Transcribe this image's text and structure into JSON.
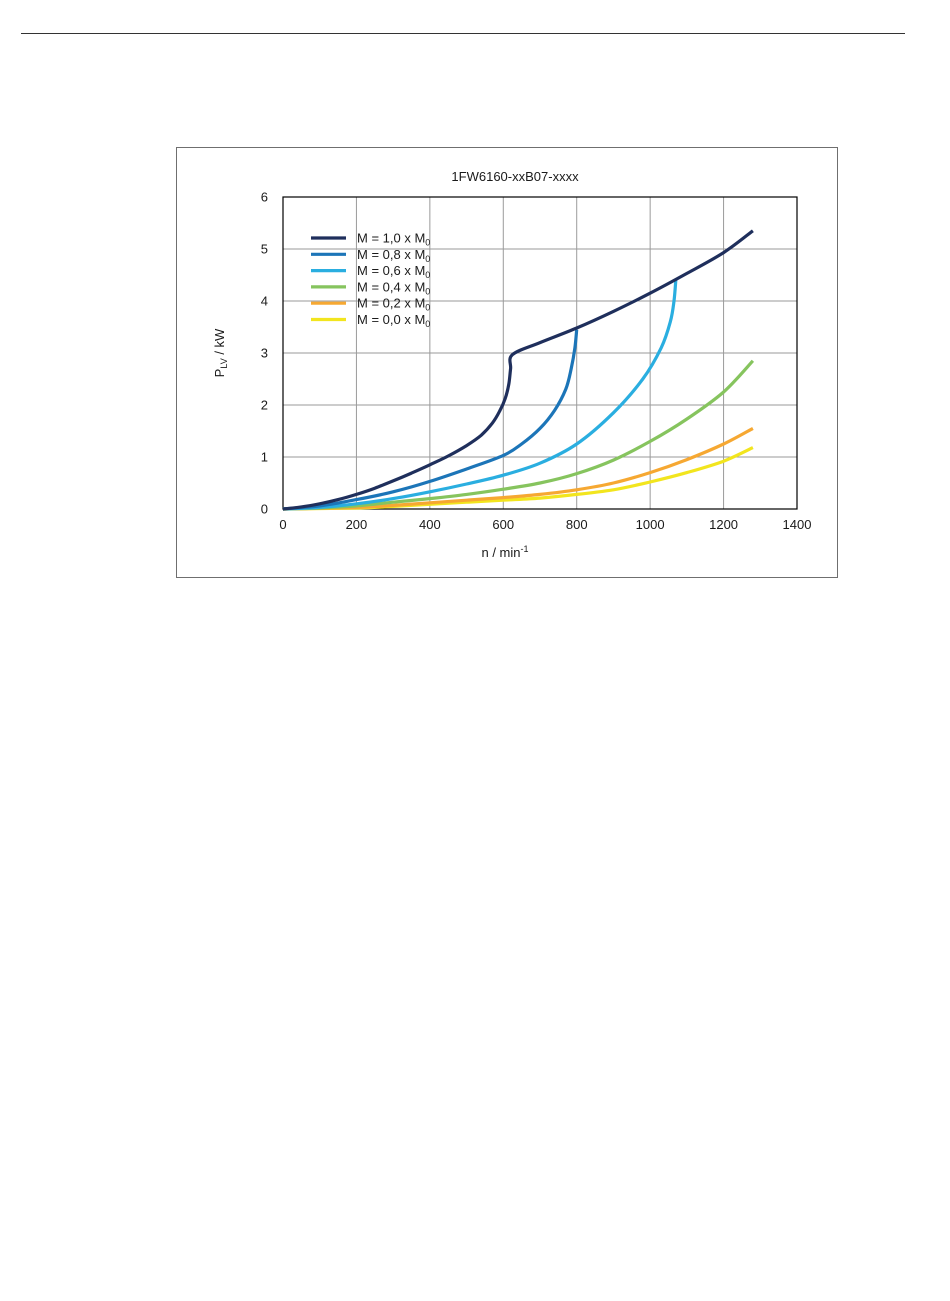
{
  "chart_data": {
    "type": "line",
    "title": "1FW6160-xxB07-xxxx",
    "xlabel": "n / min",
    "xlabel_sup": "-1",
    "ylabel": "P",
    "ylabel_sub": "LV",
    "ylabel_unit": " / kW",
    "xlim": [
      0,
      1400
    ],
    "ylim": [
      0,
      6
    ],
    "xticks": [
      0,
      200,
      400,
      600,
      800,
      1000,
      1200,
      1400
    ],
    "yticks": [
      0,
      1,
      2,
      3,
      4,
      5,
      6
    ],
    "grid": true,
    "legend_position": "top-left",
    "series": [
      {
        "name": "M = 1,0 x M",
        "name_sub": "0",
        "color": "#1f2f5c",
        "points": [
          [
            0,
            0
          ],
          [
            50,
            0.04
          ],
          [
            100,
            0.1
          ],
          [
            150,
            0.18
          ],
          [
            200,
            0.28
          ],
          [
            250,
            0.4
          ],
          [
            300,
            0.54
          ],
          [
            350,
            0.69
          ],
          [
            400,
            0.85
          ],
          [
            450,
            1.02
          ],
          [
            500,
            1.22
          ],
          [
            540,
            1.42
          ],
          [
            570,
            1.65
          ],
          [
            590,
            1.88
          ],
          [
            605,
            2.12
          ],
          [
            615,
            2.4
          ],
          [
            620,
            2.7
          ],
          [
            625,
            2.97
          ],
          [
            700,
            3.2
          ],
          [
            800,
            3.48
          ],
          [
            900,
            3.8
          ],
          [
            1000,
            4.15
          ],
          [
            1100,
            4.53
          ],
          [
            1200,
            4.93
          ],
          [
            1280,
            5.35
          ]
        ]
      },
      {
        "name": "M = 0,8 x M",
        "name_sub": "0",
        "color": "#1c75b8",
        "points": [
          [
            0,
            0
          ],
          [
            100,
            0.06
          ],
          [
            200,
            0.18
          ],
          [
            300,
            0.33
          ],
          [
            400,
            0.53
          ],
          [
            500,
            0.77
          ],
          [
            600,
            1.03
          ],
          [
            650,
            1.25
          ],
          [
            700,
            1.55
          ],
          [
            740,
            1.9
          ],
          [
            770,
            2.3
          ],
          [
            785,
            2.7
          ],
          [
            795,
            3.1
          ],
          [
            800,
            3.45
          ]
        ]
      },
      {
        "name": "M = 0,6 x M",
        "name_sub": "0",
        "color": "#2aaee0",
        "points": [
          [
            0,
            0
          ],
          [
            100,
            0.03
          ],
          [
            200,
            0.1
          ],
          [
            300,
            0.2
          ],
          [
            400,
            0.33
          ],
          [
            500,
            0.48
          ],
          [
            600,
            0.65
          ],
          [
            700,
            0.88
          ],
          [
            800,
            1.25
          ],
          [
            900,
            1.85
          ],
          [
            980,
            2.5
          ],
          [
            1030,
            3.1
          ],
          [
            1055,
            3.6
          ],
          [
            1065,
            4.0
          ],
          [
            1070,
            4.4
          ]
        ]
      },
      {
        "name": "M = 0,4 x M",
        "name_sub": "0",
        "color": "#86c45e",
        "points": [
          [
            0,
            0
          ],
          [
            100,
            0.02
          ],
          [
            200,
            0.06
          ],
          [
            300,
            0.13
          ],
          [
            400,
            0.2
          ],
          [
            500,
            0.28
          ],
          [
            600,
            0.38
          ],
          [
            700,
            0.5
          ],
          [
            800,
            0.68
          ],
          [
            900,
            0.94
          ],
          [
            1000,
            1.3
          ],
          [
            1100,
            1.73
          ],
          [
            1200,
            2.25
          ],
          [
            1280,
            2.85
          ]
        ]
      },
      {
        "name": "M = 0,2 x M",
        "name_sub": "0",
        "color": "#f6a832",
        "points": [
          [
            0,
            0
          ],
          [
            200,
            0.03
          ],
          [
            300,
            0.07
          ],
          [
            400,
            0.12
          ],
          [
            500,
            0.17
          ],
          [
            600,
            0.22
          ],
          [
            700,
            0.28
          ],
          [
            800,
            0.37
          ],
          [
            900,
            0.5
          ],
          [
            1000,
            0.7
          ],
          [
            1100,
            0.95
          ],
          [
            1200,
            1.25
          ],
          [
            1280,
            1.55
          ]
        ]
      },
      {
        "name": "M = 0,0 x M",
        "name_sub": "0",
        "color": "#f2e51e",
        "points": [
          [
            0,
            0
          ],
          [
            200,
            0.02
          ],
          [
            300,
            0.05
          ],
          [
            400,
            0.09
          ],
          [
            500,
            0.13
          ],
          [
            600,
            0.17
          ],
          [
            700,
            0.21
          ],
          [
            800,
            0.28
          ],
          [
            900,
            0.37
          ],
          [
            1000,
            0.52
          ],
          [
            1100,
            0.7
          ],
          [
            1200,
            0.92
          ],
          [
            1280,
            1.18
          ]
        ]
      }
    ]
  }
}
